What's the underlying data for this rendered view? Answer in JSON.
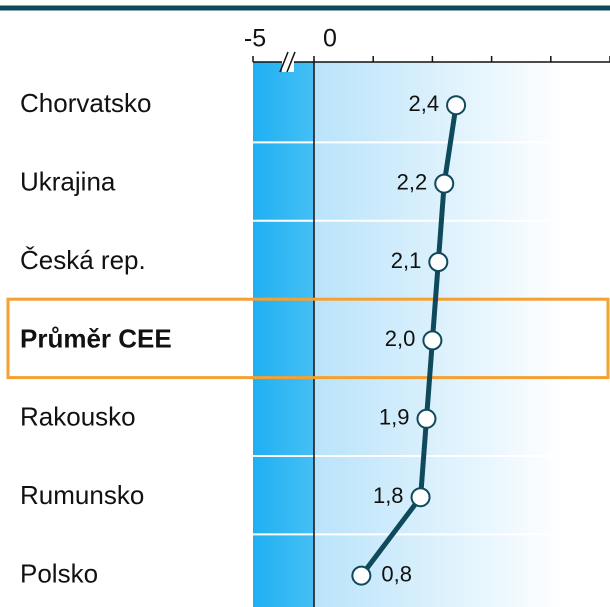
{
  "chart_data": {
    "type": "dotline",
    "categories": [
      "Chorvatsko",
      "Ukrajina",
      "Česká rep.",
      "Průměr CEE",
      "Rakousko",
      "Rumunsko",
      "Polsko"
    ],
    "values": [
      2.4,
      2.2,
      2.1,
      2.0,
      1.9,
      1.8,
      0.8
    ],
    "value_labels": [
      "2,4",
      "2,2",
      "2,1",
      "2,0",
      "1,9",
      "1,8",
      "0,8"
    ],
    "highlight": "Průměr CEE",
    "color": "#0f4a5c",
    "xlim": [
      -5,
      5
    ],
    "xticks": [
      -5,
      0,
      5
    ],
    "xminorticks": [
      1,
      2,
      3,
      4
    ]
  }
}
